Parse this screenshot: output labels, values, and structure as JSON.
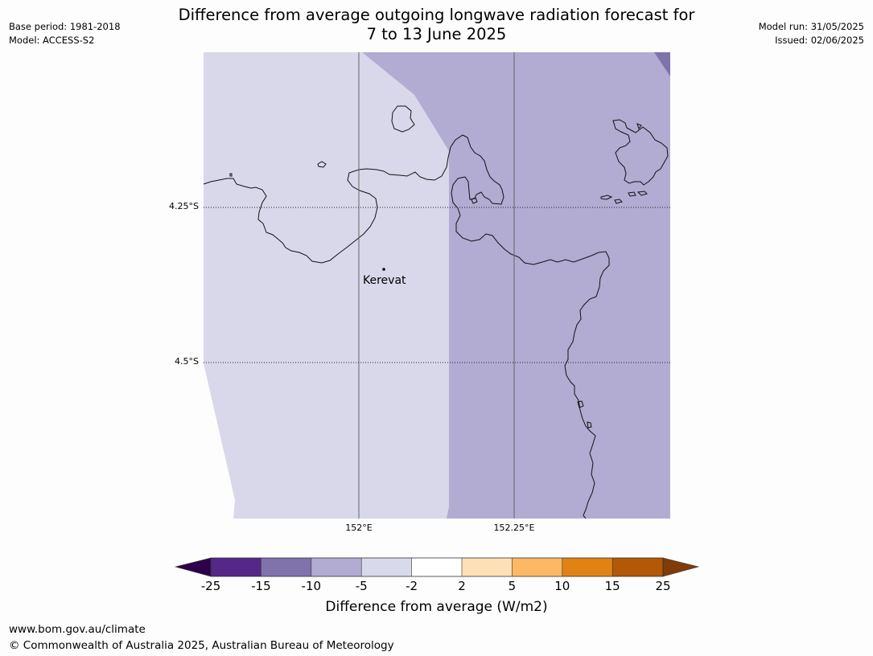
{
  "header": {
    "base_period": "Base period: 1981-2018",
    "model": "Model: ACCESS-S2",
    "title_line1": "Difference from average outgoing longwave radiation forecast for",
    "title_line2": "7 to 13 June 2025",
    "model_run": "Model run: 31/05/2025",
    "issued": "Issued: 02/06/2025"
  },
  "map": {
    "lat_labels": [
      "4.25°S",
      "4.5°S"
    ],
    "lon_labels": [
      "152°E",
      "152.25°E"
    ],
    "place_label": "Kerevat",
    "colors": {
      "background": "#fdfdfd",
      "anomaly_minus5_to_minus2": "#d8d8ea",
      "anomaly_minus10_to_minus5": "#b2abd2",
      "anomaly_minus15_to_minus10": "#8073ac"
    }
  },
  "colorbar": {
    "title": "Difference from average (W/m2)",
    "ticks": [
      "-25",
      "-15",
      "-10",
      "-5",
      "-2",
      "2",
      "5",
      "10",
      "15",
      "25"
    ],
    "colors": {
      "below_min": "#2d004b",
      "minus25_minus15": "#542788",
      "minus15_minus10": "#8073ac",
      "minus10_minus5": "#b2abd2",
      "minus5_minus2": "#d8daeb",
      "minus2_2": "#ffffff",
      "2_5": "#fee0b6",
      "5_10": "#fdb863",
      "10_15": "#e08214",
      "15_25": "#b35806",
      "above_max": "#7f3b08"
    }
  },
  "footer": {
    "website": "www.bom.gov.au/climate",
    "copyright": "© Commonwealth of Australia 2025, Australian Bureau of Meteorology"
  }
}
